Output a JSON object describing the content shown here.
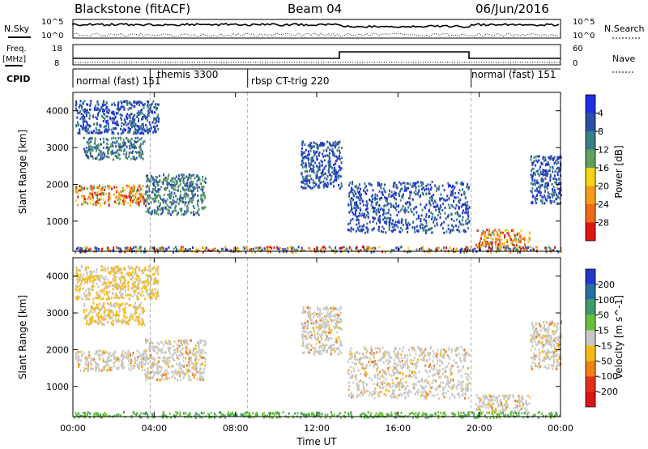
{
  "header": {
    "station": "Blackstone (fitACF)",
    "beam": "Beam 04",
    "date": "06/Jun/2016"
  },
  "side_labels": {
    "nsky": "N.Sky",
    "nsearch": "N.Search",
    "freq_top": "Freq.",
    "freq_unit": "[MHz]",
    "nave": "Nave",
    "cpid": "CPID"
  },
  "noise_panel": {
    "left_ticks": [
      "10^5",
      "10^0"
    ],
    "right_ticks": [
      "10^5",
      "10^0"
    ]
  },
  "freq_panel": {
    "left_ticks": [
      "18",
      "8"
    ],
    "right_ticks": [
      "60",
      "0"
    ]
  },
  "cpid_segments": [
    {
      "label": "normal (fast) 151",
      "start_hour": 0.0
    },
    {
      "label": "themis 3300",
      "start_hour": 3.8
    },
    {
      "label": "rbsp CT-trig 220",
      "start_hour": 8.6
    },
    {
      "label": "normal (fast) 151",
      "start_hour": 19.6
    }
  ],
  "time_axis": {
    "label": "Time UT",
    "ticks": [
      "00:00",
      "04:00",
      "08:00",
      "12:00",
      "16:00",
      "20:00",
      "00:00"
    ]
  },
  "chart_data": [
    {
      "type": "heatmap",
      "title": "",
      "xlabel": "Time UT",
      "ylabel": "Slant Range [km]",
      "xlim": [
        0,
        24
      ],
      "ylim": [
        180,
        4500
      ],
      "yticks": [
        "1000",
        "2000",
        "3000",
        "4000"
      ],
      "colorbar": {
        "label": "Power [dB]",
        "ticks": [
          "4",
          "8",
          "12",
          "16",
          "20",
          "24",
          "28"
        ],
        "colors": [
          "#1f2fe0",
          "#2c4fa6",
          "#3a7e86",
          "#5fa05f",
          "#f5d21b",
          "#f59c1a",
          "#ef6a16",
          "#e01515"
        ]
      },
      "regions": [
        {
          "t0": 0.1,
          "t1": 3.5,
          "r0": 1450,
          "r1": 2000,
          "level": "high"
        },
        {
          "t0": 0.5,
          "t1": 3.5,
          "r0": 2700,
          "r1": 3300,
          "level": "mid"
        },
        {
          "t0": 0.1,
          "t1": 4.2,
          "r0": 3400,
          "r1": 4300,
          "level": "low"
        },
        {
          "t0": 3.5,
          "t1": 6.5,
          "r0": 1200,
          "r1": 2300,
          "level": "mid"
        },
        {
          "t0": 11.2,
          "t1": 13.2,
          "r0": 1900,
          "r1": 3200,
          "level": "low"
        },
        {
          "t0": 13.5,
          "t1": 19.5,
          "r0": 700,
          "r1": 2100,
          "level": "low"
        },
        {
          "t0": 19.8,
          "t1": 22.5,
          "r0": 300,
          "r1": 800,
          "level": "high"
        },
        {
          "t0": 22.5,
          "t1": 24.0,
          "r0": 1500,
          "r1": 2800,
          "level": "low"
        },
        {
          "t0": 0.0,
          "t1": 24.0,
          "r0": 180,
          "r1": 330,
          "level": "mixed"
        }
      ]
    },
    {
      "type": "heatmap",
      "title": "",
      "xlabel": "Time UT",
      "ylabel": "Slant Range [km]",
      "xlim": [
        0,
        24
      ],
      "ylim": [
        180,
        4500
      ],
      "yticks": [
        "1000",
        "2000",
        "3000",
        "4000"
      ],
      "colorbar": {
        "label": "Velocity [m s^-1]",
        "ticks": [
          "200",
          "100",
          "50",
          "15",
          "-15",
          "-50",
          "-100",
          "-200"
        ],
        "colors": [
          "#2236c8",
          "#2a6e9b",
          "#3f9a6a",
          "#68c03a",
          "#c8c8c4",
          "#f5b91a",
          "#f07f1a",
          "#e0301a",
          "#d91515"
        ]
      },
      "regions": [
        {
          "t0": 0.1,
          "t1": 3.5,
          "r0": 1450,
          "r1": 2000,
          "level": "gray"
        },
        {
          "t0": 0.5,
          "t1": 3.5,
          "r0": 2700,
          "r1": 3300,
          "level": "orange"
        },
        {
          "t0": 0.1,
          "t1": 4.2,
          "r0": 3400,
          "r1": 4300,
          "level": "orange"
        },
        {
          "t0": 3.5,
          "t1": 6.5,
          "r0": 1200,
          "r1": 2300,
          "level": "gray"
        },
        {
          "t0": 11.2,
          "t1": 13.2,
          "r0": 1900,
          "r1": 3200,
          "level": "gray"
        },
        {
          "t0": 13.5,
          "t1": 19.5,
          "r0": 700,
          "r1": 2100,
          "level": "gray"
        },
        {
          "t0": 19.8,
          "t1": 22.5,
          "r0": 300,
          "r1": 800,
          "level": "gray"
        },
        {
          "t0": 22.5,
          "t1": 24.0,
          "r0": 1500,
          "r1": 2800,
          "level": "gray"
        },
        {
          "t0": 0.0,
          "t1": 24.0,
          "r0": 180,
          "r1": 330,
          "level": "green"
        }
      ]
    }
  ]
}
